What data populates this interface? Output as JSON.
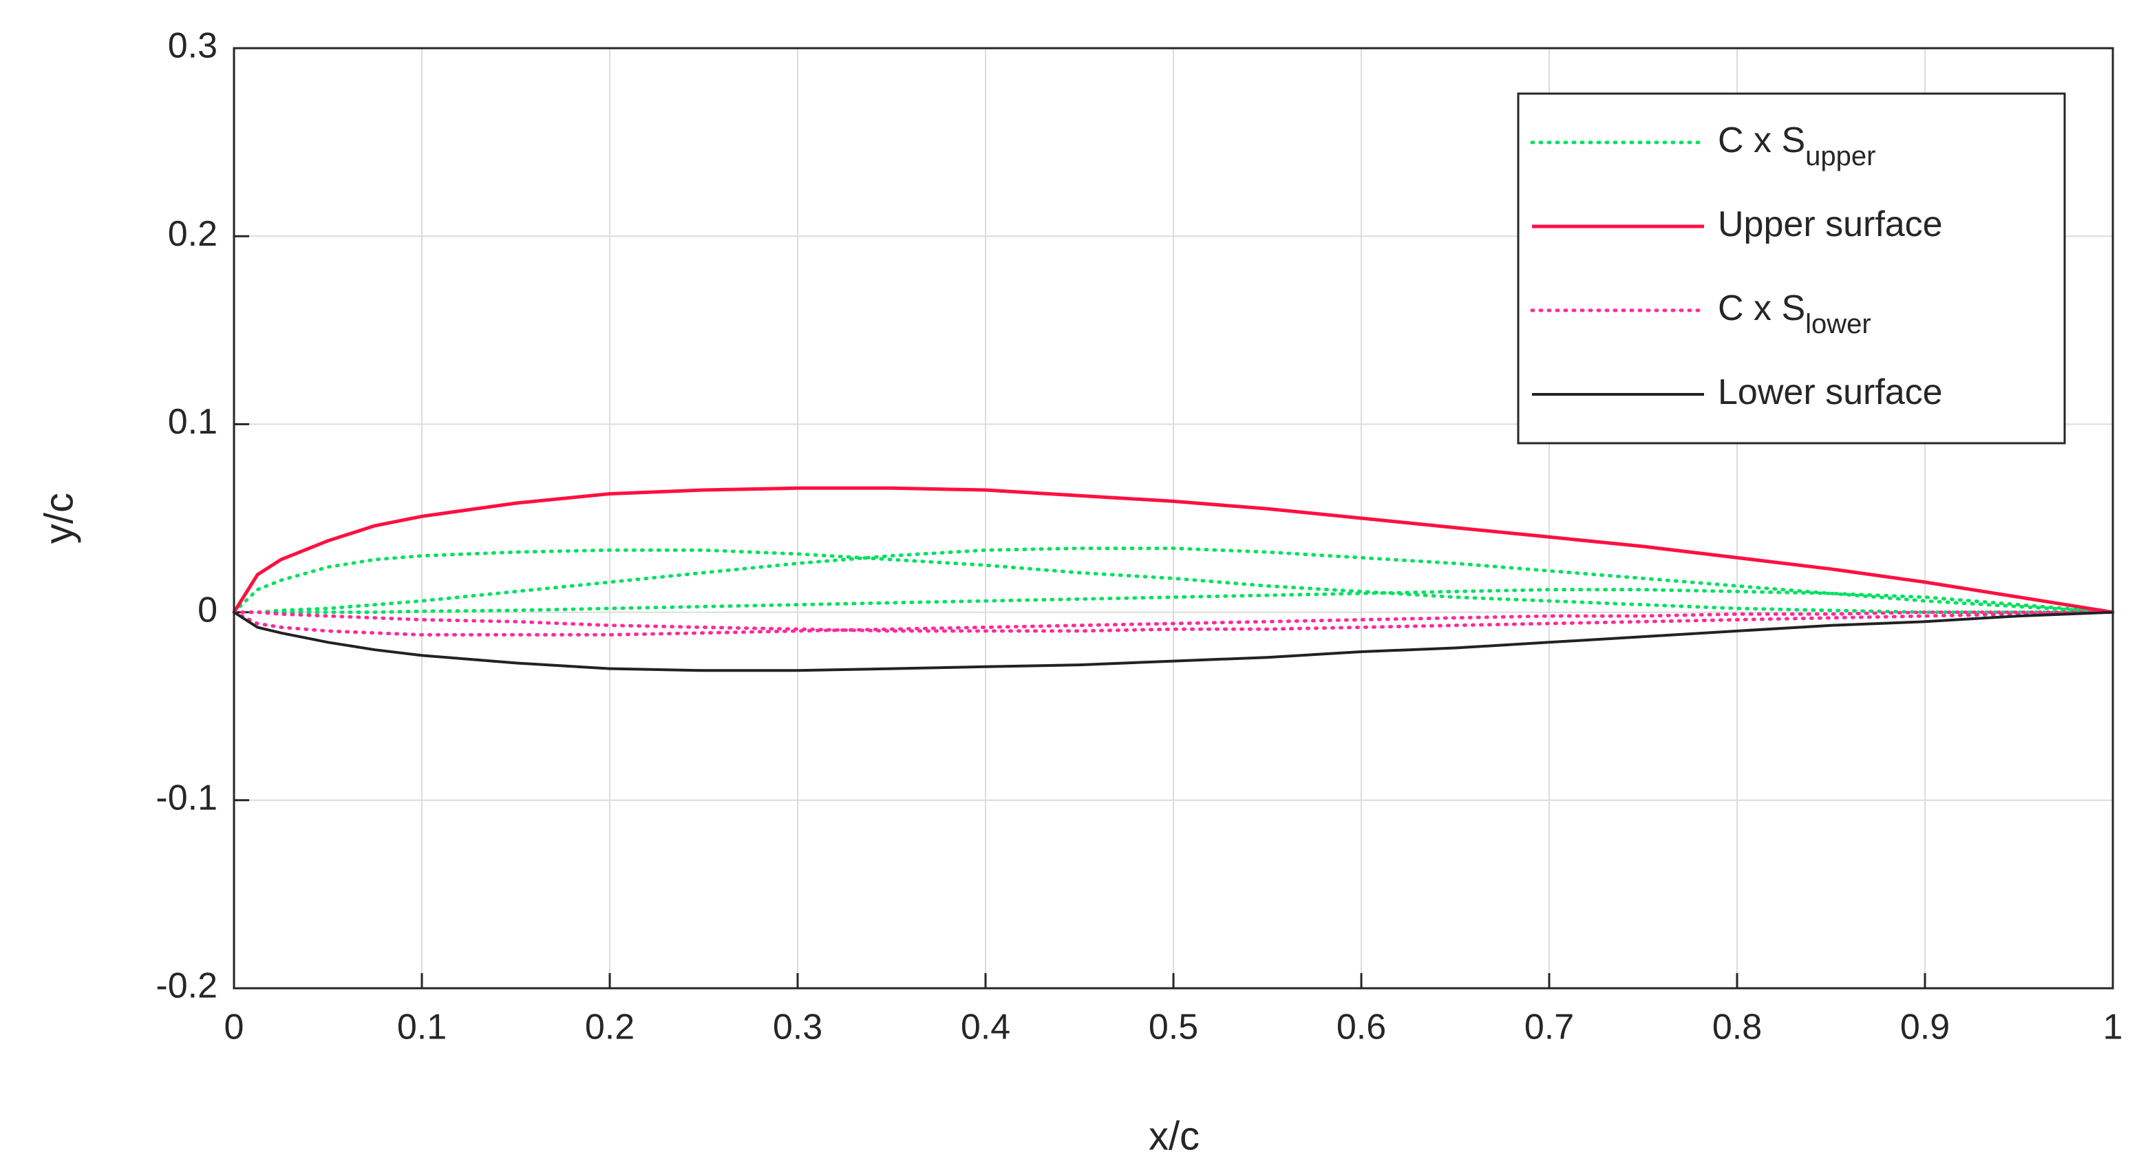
{
  "chart_data": {
    "type": "line",
    "xlabel": "x/c",
    "ylabel": "y/c",
    "x": [
      0,
      0.0125,
      0.025,
      0.05,
      0.075,
      0.1,
      0.15,
      0.2,
      0.25,
      0.3,
      0.35,
      0.4,
      0.45,
      0.5,
      0.55,
      0.6,
      0.65,
      0.7,
      0.75,
      0.8,
      0.85,
      0.9,
      0.95,
      1
    ],
    "xlim": [
      0,
      1
    ],
    "xticks": [
      0,
      0.1,
      0.2,
      0.3,
      0.4,
      0.5,
      0.6,
      0.7,
      0.8,
      0.9,
      1
    ],
    "ylim": [
      -0.2,
      0.3
    ],
    "yticks": [
      -0.2,
      -0.1,
      0,
      0.1,
      0.2,
      0.3
    ],
    "grid": true,
    "legend": "northeast",
    "series": [
      {
        "name": "C x S",
        "name_sub": "upper",
        "color": "#00e060",
        "dash": "dotted",
        "curves": [
          {
            "values": [
              0,
              0.012,
              0.017,
              0.024,
              0.028,
              0.03,
              0.032,
              0.033,
              0.033,
              0.031,
              0.028,
              0.025,
              0.021,
              0.018,
              0.014,
              0.011,
              0.008,
              0.006,
              0.004,
              0.002,
              0.001,
              0,
              0,
              0
            ]
          },
          {
            "values": [
              0,
              0,
              0.001,
              0.002,
              0.004,
              0.006,
              0.011,
              0.016,
              0.021,
              0.026,
              0.03,
              0.033,
              0.034,
              0.034,
              0.032,
              0.029,
              0.026,
              0.022,
              0.018,
              0.014,
              0.01,
              0.006,
              0.003,
              0
            ]
          },
          {
            "values": [
              0,
              0,
              0,
              0,
              0,
              0.0005,
              0.001,
              0.002,
              0.003,
              0.004,
              0.005,
              0.006,
              0.007,
              0.008,
              0.009,
              0.01,
              0.011,
              0.012,
              0.012,
              0.011,
              0.01,
              0.008,
              0.004,
              0
            ]
          }
        ]
      },
      {
        "name": "Upper surface",
        "color": "#ff1040",
        "dash": "solid",
        "values": [
          0,
          0.02,
          0.028,
          0.038,
          0.046,
          0.051,
          0.058,
          0.063,
          0.065,
          0.066,
          0.066,
          0.065,
          0.062,
          0.059,
          0.055,
          0.05,
          0.045,
          0.04,
          0.035,
          0.029,
          0.023,
          0.016,
          0.008,
          0
        ]
      },
      {
        "name": "C x S",
        "name_sub": "lower",
        "color": "#ff2a9a",
        "dash": "dotted",
        "curves": [
          {
            "values": [
              0,
              -0.006,
              -0.008,
              -0.01,
              -0.011,
              -0.012,
              -0.012,
              -0.012,
              -0.011,
              -0.01,
              -0.009,
              -0.008,
              -0.007,
              -0.006,
              -0.005,
              -0.004,
              -0.003,
              -0.002,
              -0.002,
              -0.001,
              -0.001,
              0,
              0,
              0
            ]
          },
          {
            "values": [
              0,
              0,
              -0.001,
              -0.002,
              -0.003,
              -0.004,
              -0.005,
              -0.007,
              -0.008,
              -0.009,
              -0.01,
              -0.01,
              -0.01,
              -0.009,
              -0.009,
              -0.008,
              -0.007,
              -0.006,
              -0.005,
              -0.004,
              -0.003,
              -0.002,
              -0.001,
              0
            ]
          }
        ]
      },
      {
        "name": "Lower surface",
        "color": "#222222",
        "dash": "solid",
        "values": [
          0,
          -0.008,
          -0.011,
          -0.016,
          -0.02,
          -0.023,
          -0.027,
          -0.03,
          -0.031,
          -0.031,
          -0.03,
          -0.029,
          -0.028,
          -0.026,
          -0.024,
          -0.021,
          -0.019,
          -0.016,
          -0.013,
          -0.01,
          -0.007,
          -0.005,
          -0.002,
          0
        ]
      }
    ]
  }
}
